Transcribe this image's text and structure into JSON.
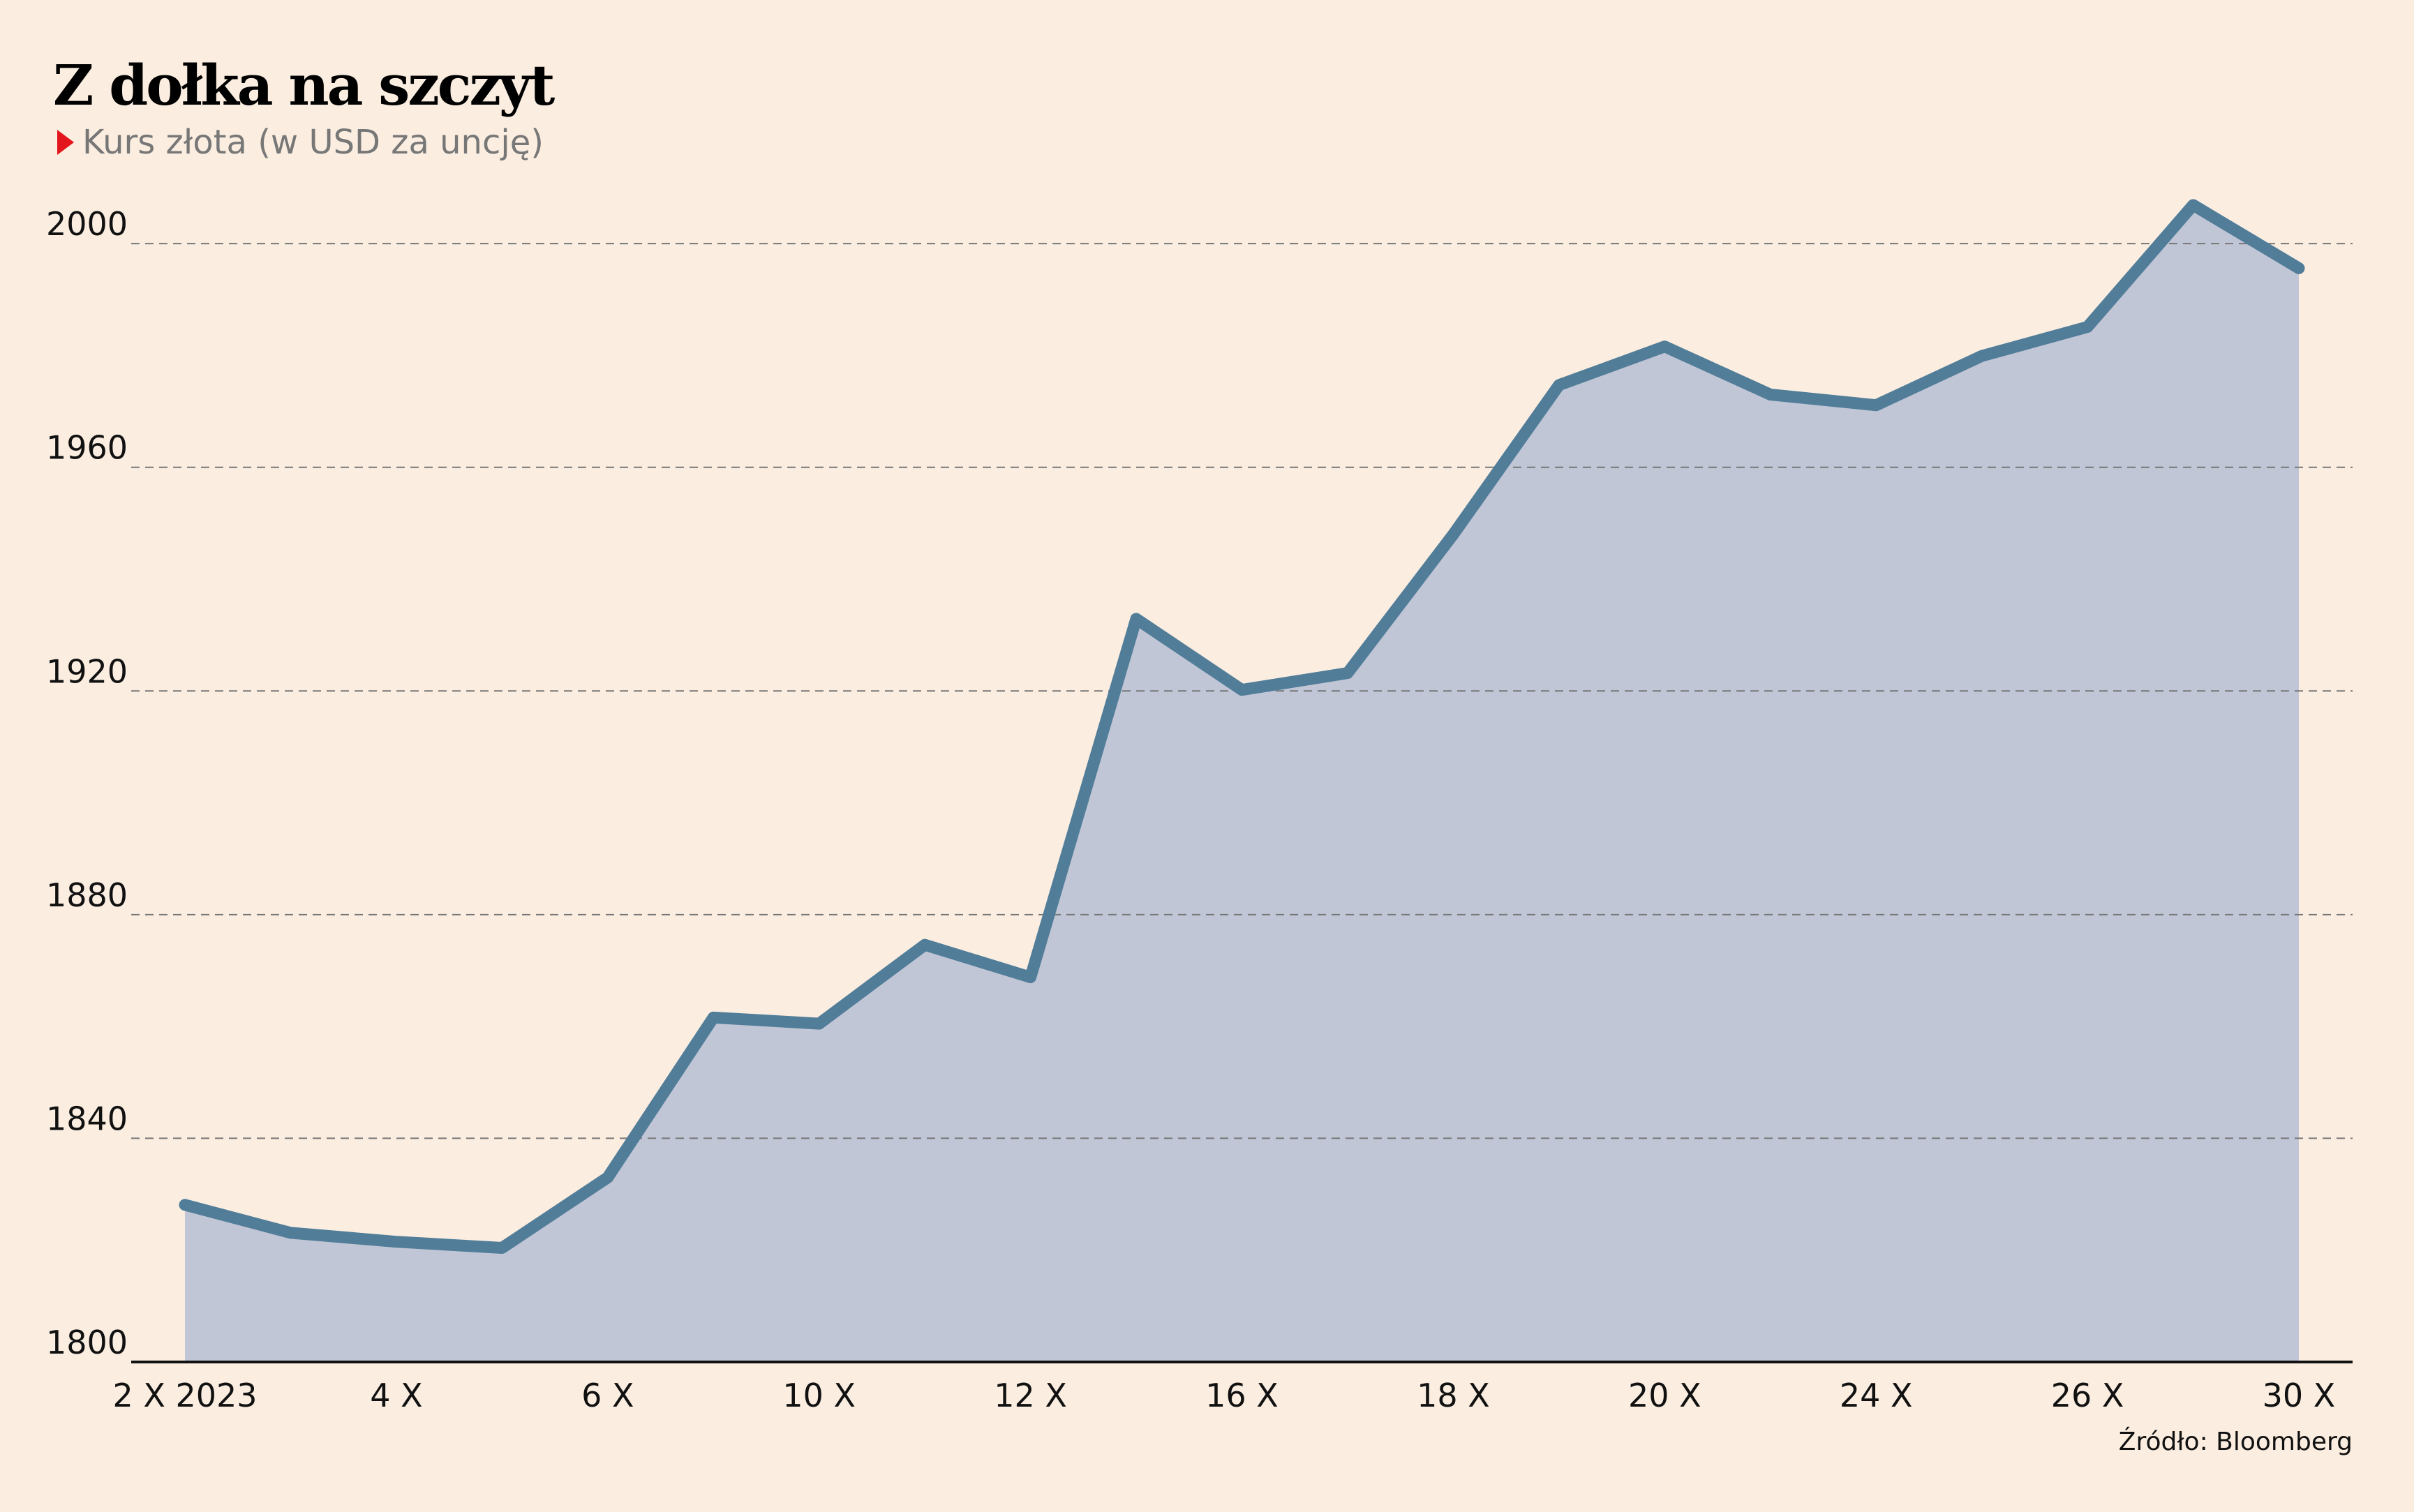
{
  "chart_data": {
    "type": "area",
    "title": "Z dołka na szczyt",
    "subtitle": "Kurs złota (w USD za uncję)",
    "source": "Źródło: Bloomberg",
    "categories": [
      "2 X 2023",
      null,
      "4 X",
      null,
      "6 X",
      null,
      "10 X",
      null,
      "12 X",
      null,
      "16 X",
      null,
      "18 X",
      null,
      "20 X",
      null,
      "24 X",
      null,
      "26 X",
      null,
      "30 X"
    ],
    "values": [
      1828.1,
      1823.1,
      1821.5,
      1820.4,
      1833,
      1861.6,
      1860.5,
      1874.6,
      1868.8,
      1932.9,
      1920.2,
      1923.2,
      1948,
      1974.7,
      1981.6,
      1973,
      1971.1,
      1979.9,
      1985.1,
      2006.9,
      1995.6
    ],
    "color": "#517d99",
    "fill": "#c1c6d6",
    "ylim": [
      1800,
      2010
    ],
    "yticks": [
      1800,
      1840,
      1880,
      1920,
      1960,
      2000
    ],
    "grid": true
  }
}
